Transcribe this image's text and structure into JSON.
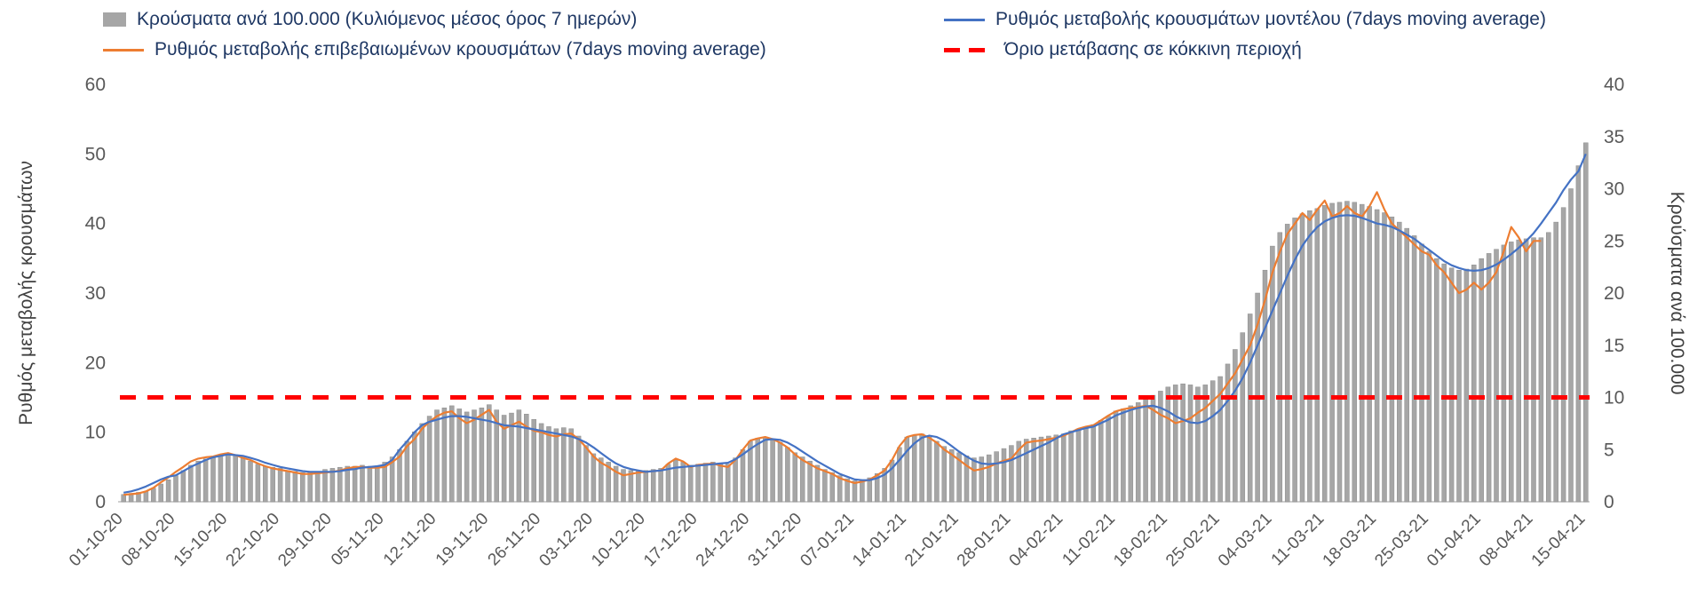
{
  "legend": {
    "text_color": "#1f3864",
    "items": [
      {
        "label": "Κρούσματα ανά 100.000 (Κυλιόμενος μέσος όρος 7 ημερών)",
        "type": "bar",
        "color": "#a6a6a6"
      },
      {
        "label": "Ρυθμός μεταβολής κρουσμάτων μοντέλου (7days moving average)",
        "type": "line",
        "color": "#4472c4"
      },
      {
        "label": "Ρυθμός μεταβολής επιβεβαιωμένων κρουσμάτων (7days moving average)",
        "type": "line",
        "color": "#ed7d31"
      },
      {
        "label": "Όριο μετάβασης σε κόκκινη περιοχή",
        "type": "dashed-line",
        "color": "#ff0000"
      }
    ]
  },
  "chart_data": {
    "type": "combo",
    "grid": "off",
    "legend_position": "top",
    "left_axis": {
      "label": "Ρυθμός μεταβολής κρουσμάτων",
      "range": [
        0,
        60
      ],
      "ticks": [
        0,
        10,
        20,
        30,
        40,
        50,
        60
      ]
    },
    "right_axis": {
      "label": "Κρούσματα ανά 100.000",
      "range": [
        0,
        40
      ],
      "ticks": [
        0,
        5,
        10,
        15,
        20,
        25,
        30,
        35,
        40
      ]
    },
    "x_is_daily": true,
    "x_tick_interval_days": 7,
    "x_tick_labels": [
      "01-10-20",
      "08-10-20",
      "15-10-20",
      "22-10-20",
      "29-10-20",
      "05-11-20",
      "12-11-20",
      "19-11-20",
      "26-11-20",
      "03-12-20",
      "10-12-20",
      "17-12-20",
      "24-12-20",
      "31-12-20",
      "07-01-21",
      "14-01-21",
      "21-01-21",
      "28-01-21",
      "04-02-21",
      "11-02-21",
      "18-02-21",
      "25-02-21",
      "04-03-21",
      "11-03-21",
      "18-03-21",
      "25-03-21",
      "01-04-21",
      "08-04-21",
      "15-04-21"
    ],
    "threshold": {
      "value": 15,
      "axis": "left",
      "color": "#ff0000",
      "label": "Όριο μετάβασης σε κόκκινη περιοχή"
    },
    "bars": {
      "name": "Κρούσματα ανά 100.000 (Κυλιόμενος μέσος όρος 7 ημερών)",
      "axis": "right",
      "color": "#a6a6a6",
      "values": [
        0.7,
        0.8,
        0.9,
        1.0,
        1.3,
        1.7,
        2.1,
        2.5,
        3.0,
        3.5,
        3.9,
        4.1,
        4.2,
        4.4,
        4.6,
        4.5,
        4.2,
        3.9,
        3.6,
        3.4,
        3.3,
        3.2,
        3.0,
        2.9,
        2.8,
        2.8,
        2.9,
        3.1,
        3.2,
        3.3,
        3.4,
        3.4,
        3.5,
        3.4,
        3.4,
        3.8,
        4.3,
        5.0,
        5.8,
        6.7,
        7.5,
        8.2,
        8.8,
        9.0,
        9.2,
        8.9,
        8.6,
        8.8,
        9.0,
        9.3,
        8.8,
        8.3,
        8.5,
        8.8,
        8.4,
        7.9,
        7.5,
        7.2,
        7.0,
        7.1,
        7.0,
        6.3,
        5.4,
        4.6,
        4.2,
        3.8,
        3.4,
        3.1,
        3.0,
        3.0,
        3.0,
        3.1,
        3.2,
        3.6,
        4.0,
        3.8,
        3.5,
        3.6,
        3.7,
        3.8,
        3.7,
        3.6,
        4.2,
        5.0,
        5.8,
        6.1,
        6.2,
        6.0,
        5.7,
        5.2,
        4.7,
        4.3,
        3.9,
        3.5,
        3.1,
        2.8,
        2.5,
        2.2,
        2.0,
        2.1,
        2.3,
        2.7,
        3.2,
        4.0,
        5.2,
        6.2,
        6.4,
        6.5,
        6.2,
        5.8,
        5.3,
        5.0,
        4.7,
        4.4,
        4.2,
        4.3,
        4.5,
        4.8,
        5.1,
        5.4,
        5.8,
        6.0,
        6.1,
        6.2,
        6.3,
        6.4,
        6.5,
        6.8,
        7.0,
        7.2,
        7.4,
        7.8,
        8.2,
        8.7,
        8.9,
        9.2,
        9.5,
        9.8,
        10.2,
        10.6,
        11.0,
        11.2,
        11.3,
        11.2,
        11.0,
        11.2,
        11.6,
        12.0,
        13.2,
        14.6,
        16.2,
        18.0,
        20.0,
        22.2,
        24.5,
        25.8,
        26.6,
        27.2,
        27.6,
        27.9,
        28.1,
        28.4,
        28.6,
        28.7,
        28.8,
        28.7,
        28.5,
        28.3,
        28.0,
        27.7,
        27.3,
        26.8,
        26.2,
        25.5,
        24.7,
        24.0,
        23.3,
        22.8,
        22.4,
        22.2,
        22.3,
        22.7,
        23.3,
        23.8,
        24.2,
        24.6,
        24.9,
        25.1,
        25.2,
        25.3,
        25.3,
        25.8,
        26.8,
        28.2,
        30.0,
        32.2,
        34.4
      ]
    },
    "series": [
      {
        "name": "Ρυθμός μεταβολής επιβεβαιωμένων κρουσμάτων (7days moving average)",
        "axis": "left",
        "color": "#ed7d31",
        "values": [
          1.0,
          1.1,
          1.2,
          1.5,
          2.0,
          2.8,
          3.5,
          4.3,
          5.0,
          5.8,
          6.2,
          6.4,
          6.5,
          6.8,
          7.0,
          6.7,
          6.3,
          6.0,
          5.5,
          5.1,
          4.8,
          4.6,
          4.4,
          4.2,
          4.0,
          4.0,
          4.1,
          4.2,
          4.3,
          4.5,
          4.8,
          5.0,
          5.0,
          4.9,
          4.9,
          5.0,
          5.7,
          6.5,
          8.0,
          9.0,
          10.5,
          11.5,
          12.3,
          12.8,
          13.0,
          12.0,
          11.3,
          11.8,
          12.5,
          13.2,
          11.5,
          10.5,
          11.0,
          11.5,
          10.8,
          10.2,
          10.0,
          9.6,
          9.4,
          9.7,
          9.8,
          9.0,
          7.8,
          6.5,
          5.6,
          5.0,
          4.3,
          3.8,
          4.0,
          4.2,
          4.3,
          4.4,
          4.5,
          5.5,
          6.2,
          5.8,
          5.0,
          5.3,
          5.4,
          5.5,
          5.2,
          5.0,
          6.0,
          7.5,
          8.8,
          9.1,
          9.3,
          9.0,
          8.5,
          7.8,
          6.8,
          6.0,
          5.4,
          4.8,
          4.4,
          4.0,
          3.4,
          3.0,
          2.7,
          2.9,
          3.2,
          3.8,
          4.5,
          6.0,
          8.0,
          9.3,
          9.6,
          9.7,
          9.2,
          8.5,
          7.5,
          6.8,
          6.0,
          5.2,
          4.5,
          4.7,
          5.0,
          5.5,
          5.9,
          6.2,
          7.5,
          8.5,
          8.7,
          8.8,
          9.0,
          9.2,
          9.5,
          10.0,
          10.5,
          10.8,
          11.0,
          11.7,
          12.4,
          13.0,
          13.3,
          13.5,
          13.6,
          13.8,
          13.2,
          12.5,
          12.0,
          11.3,
          11.6,
          12.0,
          12.8,
          13.5,
          14.5,
          15.5,
          17.0,
          18.5,
          20.5,
          22.5,
          25.5,
          29.0,
          33.0,
          36.0,
          38.5,
          40.0,
          41.5,
          40.5,
          42.0,
          43.3,
          41.0,
          41.5,
          42.5,
          41.5,
          41.0,
          42.5,
          44.5,
          42.0,
          40.0,
          39.0,
          38.0,
          37.0,
          36.0,
          35.5,
          34.0,
          33.0,
          31.5,
          30.0,
          30.5,
          31.5,
          30.5,
          31.5,
          33.0,
          36.0,
          39.5,
          38.0,
          36.0,
          37.5,
          37.5,
          null,
          null,
          null,
          null,
          null,
          null
        ]
      },
      {
        "name": "Ρυθμός μεταβολής κρουσμάτων μοντέλου (7days moving average)",
        "axis": "left",
        "color": "#4472c4",
        "values": [
          1.3,
          1.5,
          1.8,
          2.2,
          2.7,
          3.2,
          3.6,
          3.8,
          4.4,
          5.0,
          5.5,
          6.0,
          6.4,
          6.6,
          6.8,
          6.7,
          6.6,
          6.3,
          6.0,
          5.6,
          5.3,
          5.0,
          4.8,
          4.6,
          4.4,
          4.3,
          4.3,
          4.3,
          4.3,
          4.4,
          4.6,
          4.7,
          4.9,
          5.0,
          5.1,
          5.3,
          6.0,
          7.5,
          8.7,
          10.0,
          11.0,
          11.5,
          11.8,
          12.1,
          12.3,
          12.3,
          12.2,
          12.0,
          11.8,
          11.6,
          11.3,
          11.0,
          10.9,
          10.8,
          10.6,
          10.4,
          10.2,
          10.0,
          9.8,
          9.6,
          9.4,
          9.0,
          8.5,
          7.8,
          7.0,
          6.2,
          5.5,
          5.0,
          4.7,
          4.5,
          4.3,
          4.4,
          4.5,
          4.7,
          4.9,
          5.0,
          5.1,
          5.2,
          5.3,
          5.4,
          5.5,
          5.6,
          6.1,
          6.8,
          7.6,
          8.3,
          8.9,
          9.0,
          8.9,
          8.5,
          7.9,
          7.2,
          6.5,
          5.8,
          5.2,
          4.6,
          4.0,
          3.6,
          3.2,
          3.1,
          3.1,
          3.4,
          3.9,
          4.8,
          6.0,
          7.3,
          8.4,
          9.2,
          9.5,
          9.3,
          8.8,
          8.0,
          7.2,
          6.5,
          5.9,
          5.5,
          5.4,
          5.5,
          5.7,
          6.0,
          6.5,
          7.0,
          7.5,
          8.0,
          8.5,
          9.1,
          9.7,
          10.0,
          10.3,
          10.6,
          10.8,
          11.3,
          11.8,
          12.4,
          12.8,
          13.2,
          13.5,
          13.7,
          13.8,
          13.5,
          13.0,
          12.3,
          11.8,
          11.4,
          11.3,
          11.6,
          12.3,
          13.2,
          14.5,
          16.0,
          17.8,
          20.0,
          22.5,
          25.0,
          27.5,
          30.0,
          32.5,
          34.8,
          36.8,
          38.3,
          39.5,
          40.3,
          40.8,
          41.1,
          41.2,
          41.1,
          40.8,
          40.4,
          40.0,
          39.8,
          39.5,
          39.0,
          38.4,
          37.8,
          37.0,
          36.2,
          35.4,
          34.6,
          34.0,
          33.6,
          33.3,
          33.2,
          33.3,
          33.6,
          34.1,
          34.8,
          35.6,
          36.5,
          37.5,
          38.6,
          40.0,
          41.5,
          43.0,
          44.8,
          46.3,
          47.5,
          50.0
        ]
      }
    ]
  }
}
